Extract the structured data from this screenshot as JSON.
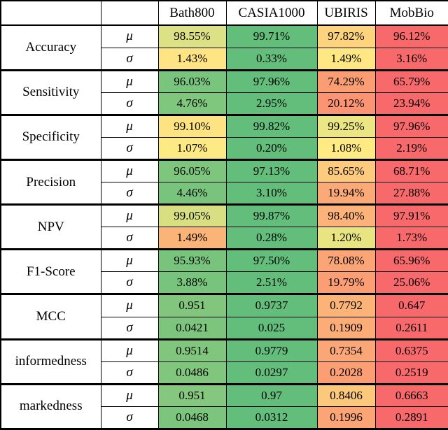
{
  "chart_data": {
    "type": "table",
    "layout": "heatmap-colored results table, red-yellow-green scale per row",
    "colorscale": {
      "low_good_green": "#63be7b",
      "mid_yellow": "#ffeb84",
      "bad_red": "#f8696b"
    },
    "columns": [
      "Bath800",
      "CASIA1000",
      "UBIRIS",
      "MobBio"
    ],
    "stat_labels": {
      "mu": "μ",
      "sigma": "σ"
    },
    "metrics": [
      {
        "name": "Accuracy",
        "mu": {
          "values": [
            "98.55%",
            "99.71%",
            "97.82%",
            "96.12%"
          ],
          "colors": [
            "#dbe184",
            "#63be7b",
            "#fdd37e",
            "#f8696b"
          ]
        },
        "sigma": {
          "values": [
            "1.43%",
            "0.33%",
            "1.49%",
            "3.16%"
          ],
          "colors": [
            "#ffe483",
            "#63be7b",
            "#ffe784",
            "#f8696b"
          ]
        }
      },
      {
        "name": "Sensitivity",
        "mu": {
          "values": [
            "96.03%",
            "97.96%",
            "74.29%",
            "65.79%"
          ],
          "colors": [
            "#7ac57d",
            "#63be7b",
            "#fa9d73",
            "#f8696b"
          ]
        },
        "sigma": {
          "values": [
            "4.76%",
            "2.95%",
            "20.12%",
            "23.94%"
          ],
          "colors": [
            "#80c77e",
            "#63be7b",
            "#fa9473",
            "#f8696b"
          ]
        }
      },
      {
        "name": "Specificity",
        "mu": {
          "values": [
            "99.10%",
            "99.82%",
            "99.25%",
            "97.96%"
          ],
          "colors": [
            "#fee382",
            "#63be7b",
            "#ebe683",
            "#f8696b"
          ]
        },
        "sigma": {
          "values": [
            "1.07%",
            "0.20%",
            "1.08%",
            "2.19%"
          ],
          "colors": [
            "#fdea84",
            "#63be7b",
            "#ffea84",
            "#f8696b"
          ]
        }
      },
      {
        "name": "Precision",
        "mu": {
          "values": [
            "96.05%",
            "97.13%",
            "85.65%",
            "68.71%"
          ],
          "colors": [
            "#7ec67d",
            "#63be7b",
            "#fdcb7e",
            "#f8696b"
          ]
        },
        "sigma": {
          "values": [
            "4.46%",
            "3.10%",
            "19.94%",
            "27.88%"
          ],
          "colors": [
            "#78c47c",
            "#63be7b",
            "#fbaa77",
            "#f8696b"
          ]
        }
      },
      {
        "name": "NPV",
        "mu": {
          "values": [
            "99.05%",
            "99.87%",
            "98.40%",
            "97.91%"
          ],
          "colors": [
            "#d7df82",
            "#63be7b",
            "#fcb278",
            "#f8696b"
          ]
        },
        "sigma": {
          "values": [
            "1.49%",
            "0.28%",
            "1.20%",
            "1.73%"
          ],
          "colors": [
            "#fbb478",
            "#63be7b",
            "#e9e482",
            "#f8696b"
          ]
        }
      },
      {
        "name": "F1-Score",
        "mu": {
          "values": [
            "95.93%",
            "97.50%",
            "78.08%",
            "65.96%"
          ],
          "colors": [
            "#78c47c",
            "#63be7b",
            "#fba476",
            "#f8696b"
          ]
        },
        "sigma": {
          "values": [
            "3.88%",
            "2.51%",
            "19.79%",
            "25.06%"
          ],
          "colors": [
            "#77c47c",
            "#63be7b",
            "#fb9e74",
            "#f8696b"
          ]
        }
      },
      {
        "name": "MCC",
        "mu": {
          "values": [
            "0.951",
            "0.9737",
            "0.7792",
            "0.647"
          ],
          "colors": [
            "#82c67d",
            "#63be7b",
            "#fcb377",
            "#f8696b"
          ]
        },
        "sigma": {
          "values": [
            "0.0421",
            "0.025",
            "0.1909",
            "0.2611"
          ],
          "colors": [
            "#7dc57d",
            "#63be7b",
            "#fbac77",
            "#f8696b"
          ]
        }
      },
      {
        "name": "informedness",
        "mu": {
          "values": [
            "0.9514",
            "0.9779",
            "0.7354",
            "0.6375"
          ],
          "colors": [
            "#81c67d",
            "#63be7b",
            "#fba677",
            "#f8696b"
          ]
        },
        "sigma": {
          "values": [
            "0.0486",
            "0.0297",
            "0.2028",
            "0.2519"
          ],
          "colors": [
            "#81c67d",
            "#63be7b",
            "#fb9e74",
            "#f8696b"
          ]
        }
      },
      {
        "name": "markedness",
        "mu": {
          "values": [
            "0.951",
            "0.97",
            "0.8406",
            "0.6663"
          ],
          "colors": [
            "#85c77e",
            "#63be7b",
            "#fcc87c",
            "#f8696b"
          ]
        },
        "sigma": {
          "values": [
            "0.0468",
            "0.0312",
            "0.1996",
            "0.2891"
          ],
          "colors": [
            "#7cc57d",
            "#63be7b",
            "#fba476",
            "#f8696b"
          ]
        }
      }
    ]
  }
}
